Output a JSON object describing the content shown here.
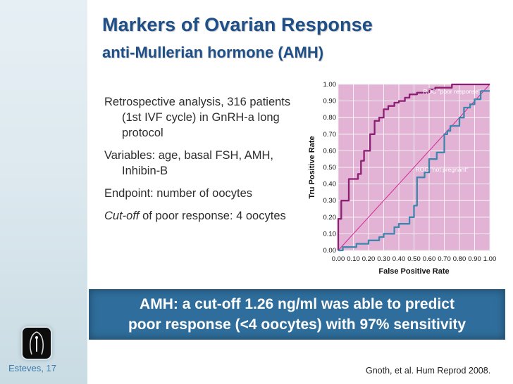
{
  "slide": {
    "title": "Markers of Ovarian Response",
    "subtitle": "anti-Mullerian hormone (AMH)",
    "slide_number": "Esteves, 17",
    "citation": "Gnoth, et al. Hum Reprod 2008."
  },
  "bullets": [
    {
      "text": "Retrospective analysis, 316 patients (1st IVF cycle) in GnRH-a long protocol"
    },
    {
      "text": "Variables: age, basal FSH, AMH, Inhibin-B"
    },
    {
      "text": "Endpoint: number of oocytes"
    },
    {
      "italic": "Cut-off",
      "text": " of poor response: 4 oocytes"
    }
  ],
  "highlight": {
    "line1": "AMH: a cut-off 1.26 ng/ml was able to predict",
    "line2": "poor response (<4 oocytes) with 97% sensitivity"
  },
  "colors": {
    "title": "#1e4f86",
    "highlight_bg": "#2f6e9c",
    "plot_bg": "#e3b3d6",
    "grid": "#ffffff",
    "curve": "#cf2b93",
    "curve_poor": "#8d1f73",
    "curve_not_pregnant": "#3d86ad"
  },
  "chart_data": {
    "type": "line",
    "xlabel": "False Positive Rate",
    "ylabel": "Tru Positive Rate",
    "xlim": [
      0,
      1
    ],
    "ylim": [
      0,
      1
    ],
    "x_ticks": [
      "0.00",
      "0.10",
      "0.20",
      "0.30",
      "0.40",
      "0.50",
      "0.60",
      "0.70",
      "0.80",
      "0.90",
      "1.00"
    ],
    "y_ticks": [
      "0.00",
      "0.10",
      "0.20",
      "0.30",
      "0.40",
      "0.50",
      "0.60",
      "0.70",
      "0.80",
      "0.90",
      "1.00"
    ],
    "grid": true,
    "series": [
      {
        "name": "ROC \"poor response\"",
        "x": [
          0,
          0,
          0.02,
          0.02,
          0.07,
          0.07,
          0.13,
          0.13,
          0.15,
          0.15,
          0.17,
          0.17,
          0.21,
          0.21,
          0.24,
          0.24,
          0.27,
          0.27,
          0.3,
          0.3,
          0.33,
          0.33,
          0.37,
          0.37,
          0.4,
          0.4,
          0.44,
          0.44,
          0.47,
          0.47,
          0.52,
          0.52,
          0.6,
          0.6,
          0.64,
          0.64,
          0.75,
          0.75,
          1.0
        ],
        "y": [
          0,
          0.19,
          0.19,
          0.3,
          0.3,
          0.43,
          0.43,
          0.46,
          0.46,
          0.54,
          0.54,
          0.6,
          0.6,
          0.7,
          0.7,
          0.78,
          0.78,
          0.8,
          0.8,
          0.85,
          0.85,
          0.87,
          0.87,
          0.89,
          0.89,
          0.9,
          0.9,
          0.92,
          0.92,
          0.94,
          0.94,
          0.95,
          0.95,
          0.97,
          0.97,
          0.98,
          0.98,
          1.0,
          1.0
        ]
      },
      {
        "name": "ROC \"not pregnant\"",
        "x": [
          0,
          0.03,
          0.03,
          0.12,
          0.12,
          0.2,
          0.2,
          0.27,
          0.27,
          0.3,
          0.3,
          0.37,
          0.37,
          0.4,
          0.4,
          0.47,
          0.47,
          0.5,
          0.5,
          0.52,
          0.52,
          0.57,
          0.57,
          0.6,
          0.6,
          0.65,
          0.65,
          0.7,
          0.7,
          0.72,
          0.72,
          0.74,
          0.74,
          0.8,
          0.8,
          0.83,
          0.83,
          0.87,
          0.87,
          0.9,
          0.9,
          0.94,
          0.94,
          1.0
        ],
        "y": [
          0,
          0,
          0.02,
          0.02,
          0.04,
          0.04,
          0.06,
          0.06,
          0.08,
          0.08,
          0.1,
          0.1,
          0.14,
          0.14,
          0.16,
          0.16,
          0.2,
          0.2,
          0.27,
          0.27,
          0.44,
          0.44,
          0.47,
          0.47,
          0.55,
          0.55,
          0.59,
          0.59,
          0.7,
          0.7,
          0.72,
          0.72,
          0.75,
          0.75,
          0.8,
          0.8,
          0.86,
          0.86,
          0.88,
          0.88,
          0.91,
          0.91,
          0.96,
          0.96
        ]
      }
    ]
  }
}
